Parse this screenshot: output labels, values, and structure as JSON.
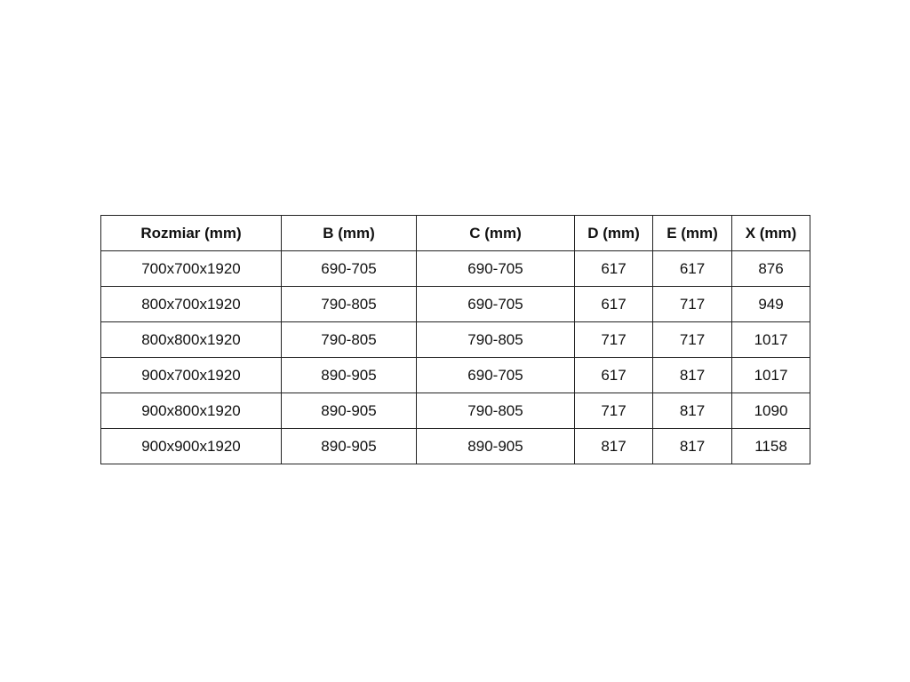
{
  "table": {
    "headers": [
      "Rozmiar (mm)",
      "B (mm)",
      "C (mm)",
      "D (mm)",
      "E (mm)",
      "X (mm)"
    ],
    "rows": [
      [
        "700x700x1920",
        "690-705",
        "690-705",
        "617",
        "617",
        "876"
      ],
      [
        "800x700x1920",
        "790-805",
        "690-705",
        "617",
        "717",
        "949"
      ],
      [
        "800x800x1920",
        "790-805",
        "790-805",
        "717",
        "717",
        "1017"
      ],
      [
        "900x700x1920",
        "890-905",
        "690-705",
        "617",
        "817",
        "1017"
      ],
      [
        "900x800x1920",
        "890-905",
        "790-805",
        "717",
        "817",
        "1090"
      ],
      [
        "900x900x1920",
        "890-905",
        "890-905",
        "817",
        "817",
        "1158"
      ]
    ]
  }
}
